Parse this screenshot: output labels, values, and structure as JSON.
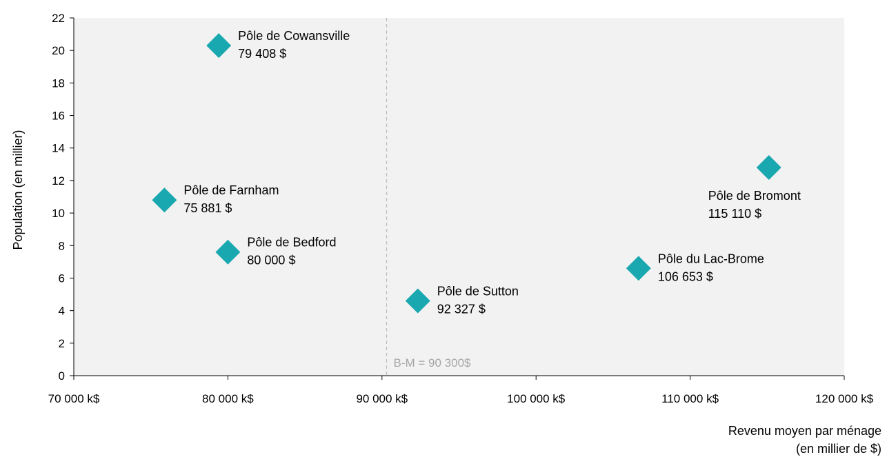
{
  "chart_data": {
    "type": "scatter",
    "title": "",
    "xlabel_lines": [
      "Revenu moyen par ménage",
      "(en millier de $)"
    ],
    "ylabel": "Population (en millier)",
    "xlim": [
      70000,
      120000
    ],
    "ylim": [
      0,
      22
    ],
    "x_ticks": [
      70000,
      80000,
      90000,
      100000,
      110000,
      120000
    ],
    "x_tick_labels": [
      "70 000 k$",
      "80 000 k$",
      "90 000 k$",
      "100 000 k$",
      "110 000 k$",
      "120 000 k$"
    ],
    "y_ticks": [
      0,
      2,
      4,
      6,
      8,
      10,
      12,
      14,
      16,
      18,
      20,
      22
    ],
    "y_tick_labels": [
      "0",
      "2",
      "4",
      "6",
      "8",
      "10",
      "12",
      "14",
      "16",
      "18",
      "20",
      "22"
    ],
    "grid": false,
    "legend": "none",
    "colors": {
      "plot_background": "#f2f2f2",
      "marker": "#1aa8b0",
      "reference_line": "#bfbfbf",
      "reference_text": "#a6a6a6"
    },
    "reference_line": {
      "x": 90300,
      "label": "B-M = 90 300$"
    },
    "points": [
      {
        "name": "Pôle de Cowansville",
        "x": 79408,
        "y": 20.3,
        "value_label": "79 408 $",
        "label_pos": "right-top"
      },
      {
        "name": "Pôle de Farnham",
        "x": 75881,
        "y": 10.8,
        "value_label": "75 881 $",
        "label_pos": "right-top"
      },
      {
        "name": "Pôle de Bedford",
        "x": 80000,
        "y": 7.6,
        "value_label": "80 000 $",
        "label_pos": "right-top"
      },
      {
        "name": "Pôle de Sutton",
        "x": 92327,
        "y": 4.6,
        "value_label": "92 327 $",
        "label_pos": "right-top"
      },
      {
        "name": "Pôle du Lac-Brome",
        "x": 106653,
        "y": 6.6,
        "value_label": "106 653 $",
        "label_pos": "right-top"
      },
      {
        "name": "Pôle de Bromont",
        "x": 115110,
        "y": 12.8,
        "value_label": "115 110 $",
        "label_pos": "below-left"
      }
    ]
  }
}
